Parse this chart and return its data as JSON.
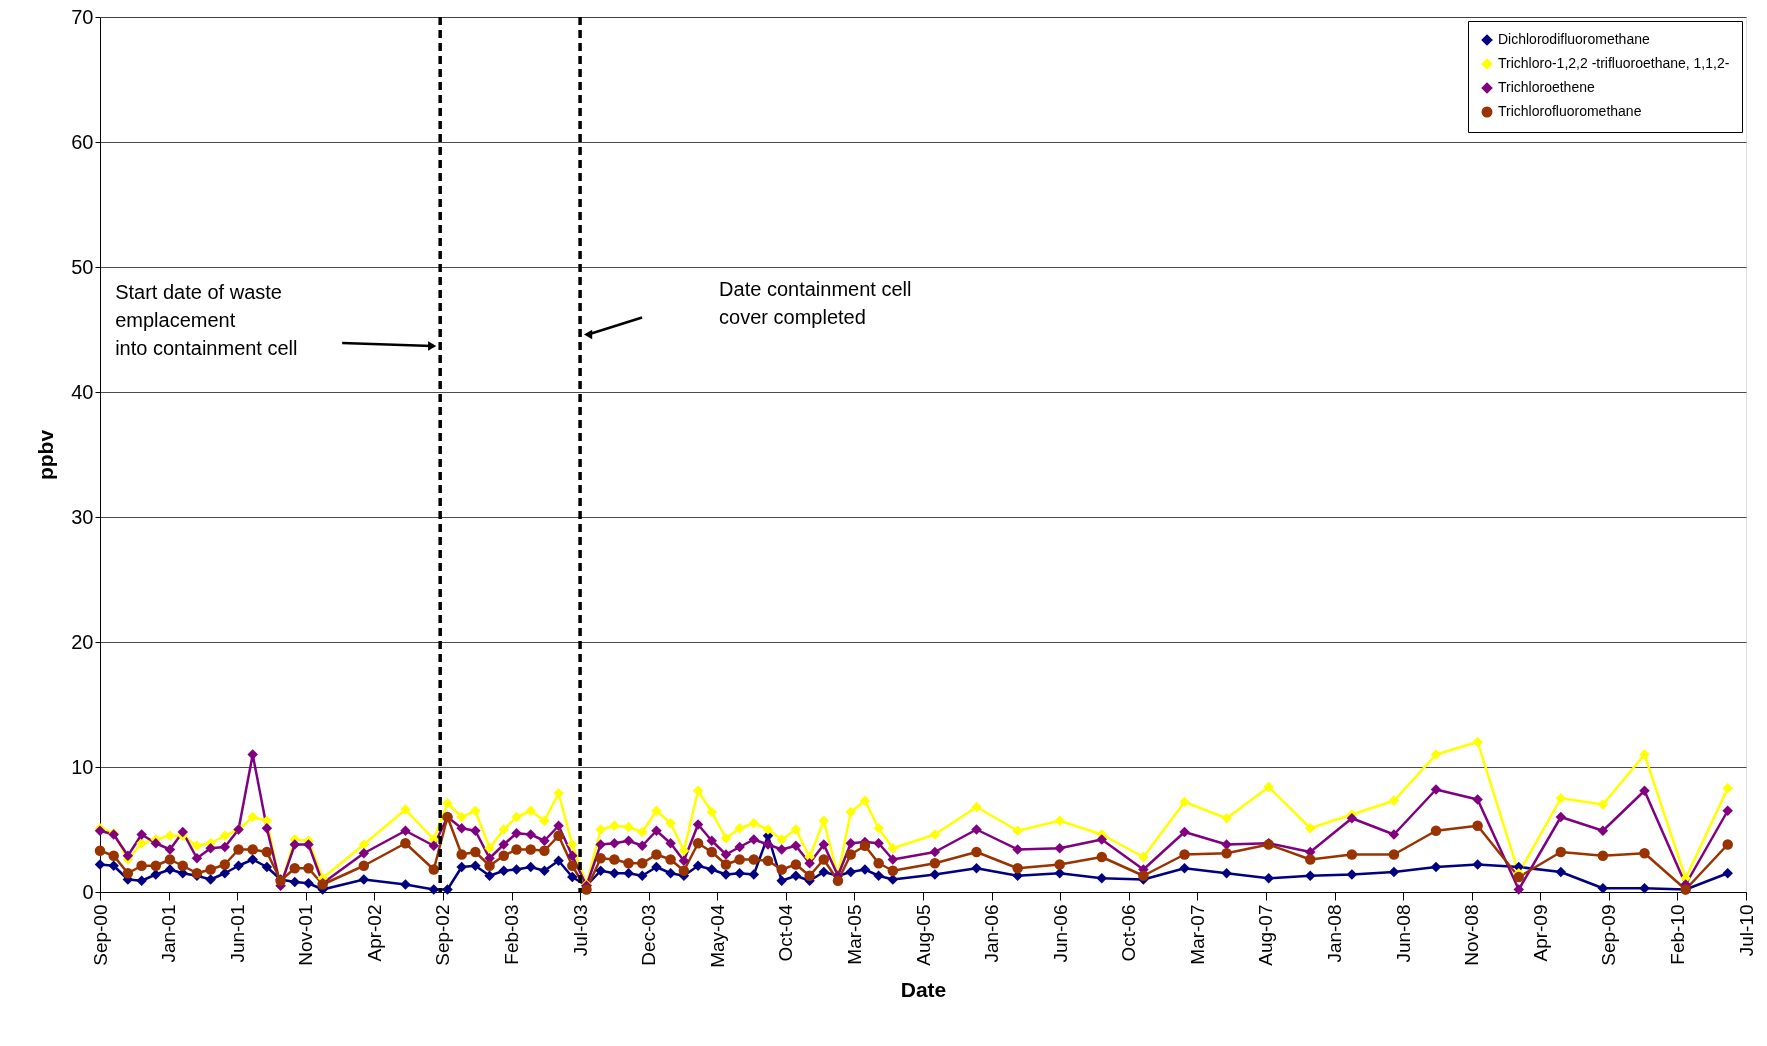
{
  "chart_data": {
    "type": "line",
    "xlabel": "Date",
    "ylabel": "ppbv",
    "x": [
      "2000-09",
      "2000-10",
      "2000-11",
      "2000-12",
      "2001-01",
      "2001-02",
      "2001-03",
      "2001-04",
      "2001-05",
      "2001-06",
      "2001-07",
      "2001-08",
      "2001-09",
      "2001-10",
      "2001-11",
      "2001-12",
      "2002-01",
      "2002-04",
      "2002-07",
      "2002-09",
      "2002-10",
      "2002-11",
      "2002-12",
      "2003-01",
      "2003-02",
      "2003-03",
      "2003-04",
      "2003-05",
      "2003-06",
      "2003-07",
      "2003-08",
      "2003-09",
      "2003-10",
      "2003-11",
      "2003-12",
      "2004-01",
      "2004-02",
      "2004-03",
      "2004-04",
      "2004-05",
      "2004-06",
      "2004-07",
      "2004-08",
      "2004-09",
      "2004-10",
      "2004-11",
      "2004-12",
      "2005-01",
      "2005-02",
      "2005-03",
      "2005-04",
      "2005-05",
      "2005-06",
      "2005-09",
      "2005-12",
      "2006-03",
      "2006-06",
      "2006-09",
      "2006-12",
      "2007-03",
      "2007-06",
      "2007-09",
      "2007-12",
      "2008-03",
      "2008-06",
      "2008-09",
      "2008-12",
      "2009-03",
      "2009-06",
      "2009-09",
      "2009-12",
      "2010-03",
      "2010-06"
    ],
    "series": [
      {
        "name": "Dichlorodifluoromethane",
        "color": "#000080",
        "marker": "diamond",
        "values": [
          2.2,
          2.1,
          1.0,
          0.9,
          1.4,
          1.8,
          1.5,
          1.3,
          1.0,
          1.5,
          2.1,
          2.6,
          2.0,
          1.0,
          0.8,
          0.7,
          0.2,
          1.0,
          0.6,
          0.2,
          0.2,
          2.0,
          2.1,
          1.3,
          1.7,
          1.8,
          2.0,
          1.7,
          2.5,
          1.2,
          0.5,
          1.7,
          1.5,
          1.5,
          1.3,
          2.0,
          1.5,
          1.3,
          2.1,
          1.8,
          1.4,
          1.5,
          1.4,
          4.5,
          0.9,
          1.3,
          0.9,
          1.6,
          1.3,
          1.6,
          1.8,
          1.3,
          1.0,
          1.4,
          1.9,
          1.3,
          1.5,
          1.1,
          1.0,
          1.9,
          1.5,
          1.1,
          1.3,
          1.4,
          1.6,
          2.0,
          2.2,
          2.0,
          1.6,
          0.3,
          0.3,
          0.2,
          1.5
        ]
      },
      {
        "name": "Trichloro-1,2,2 -trifluoroethane, 1,1,2-",
        "color": "#ffff00",
        "marker": "diamond",
        "values": [
          5.1,
          4.7,
          2.6,
          3.9,
          4.2,
          4.5,
          4.5,
          3.7,
          3.9,
          4.5,
          5.0,
          6.0,
          5.7,
          0.5,
          4.2,
          4.1,
          1.1,
          3.8,
          6.6,
          4.2,
          7.1,
          6.0,
          6.5,
          3.5,
          5.0,
          6.0,
          6.5,
          5.7,
          7.9,
          3.8,
          0.6,
          5.0,
          5.3,
          5.2,
          4.8,
          6.5,
          5.5,
          3.3,
          8.1,
          6.4,
          4.3,
          5.1,
          5.5,
          5.0,
          4.2,
          5.0,
          2.8,
          5.7,
          1.3,
          6.4,
          7.3,
          5.1,
          3.5,
          4.6,
          6.8,
          4.9,
          5.7,
          4.6,
          2.8,
          7.2,
          5.9,
          8.4,
          5.1,
          6.2,
          7.3,
          11.0,
          12.0,
          1.5,
          7.5,
          7.0,
          11.0,
          1.1,
          8.3
        ]
      },
      {
        "name": "Trichloroethene",
        "color": "#800080",
        "marker": "diamond",
        "values": [
          4.9,
          4.6,
          2.9,
          4.6,
          3.9,
          3.4,
          4.8,
          2.7,
          3.5,
          3.6,
          5.0,
          11.0,
          5.1,
          0.5,
          3.8,
          3.8,
          0.7,
          3.1,
          4.9,
          3.7,
          6.0,
          5.1,
          4.9,
          2.7,
          3.8,
          4.7,
          4.6,
          4.1,
          5.3,
          2.9,
          0.5,
          3.8,
          3.9,
          4.1,
          3.7,
          4.9,
          3.9,
          2.5,
          5.4,
          4.1,
          3.0,
          3.6,
          4.2,
          3.8,
          3.4,
          3.7,
          2.3,
          3.8,
          1.3,
          3.9,
          4.0,
          3.9,
          2.6,
          3.2,
          5.0,
          3.4,
          3.5,
          4.2,
          1.8,
          4.8,
          3.8,
          3.9,
          3.2,
          5.9,
          4.6,
          8.2,
          7.4,
          0.2,
          6.0,
          4.9,
          8.1,
          0.6,
          6.5
        ]
      },
      {
        "name": "Trichlorofluoromethane",
        "color": "#993300",
        "marker": "circle",
        "values": [
          3.3,
          2.9,
          1.5,
          2.1,
          2.1,
          2.6,
          2.1,
          1.5,
          1.8,
          2.2,
          3.4,
          3.4,
          3.2,
          0.9,
          1.9,
          1.9,
          0.6,
          2.1,
          3.9,
          1.8,
          6.0,
          3.0,
          3.2,
          2.1,
          2.9,
          3.4,
          3.4,
          3.3,
          4.5,
          2.1,
          0.2,
          2.7,
          2.6,
          2.3,
          2.3,
          3.0,
          2.6,
          1.7,
          3.9,
          3.2,
          2.2,
          2.6,
          2.6,
          2.5,
          1.8,
          2.2,
          1.3,
          2.6,
          0.9,
          3.0,
          3.7,
          2.3,
          1.7,
          2.3,
          3.2,
          1.9,
          2.2,
          2.8,
          1.3,
          3.0,
          3.1,
          3.8,
          2.6,
          3.0,
          3.0,
          4.9,
          5.3,
          1.2,
          3.2,
          2.9,
          3.1,
          0.2,
          3.8
        ]
      }
    ],
    "xlim": [
      "2000-09-01",
      "2010-07-11"
    ],
    "xticks": [
      {
        "value": "2000-09-01",
        "label": "Sep-00"
      },
      {
        "value": "2001-01-29",
        "label": "Jan-01"
      },
      {
        "value": "2001-06-28",
        "label": "Jun-01"
      },
      {
        "value": "2001-11-25",
        "label": "Nov-01"
      },
      {
        "value": "2002-04-24",
        "label": "Apr-02"
      },
      {
        "value": "2002-09-21",
        "label": "Sep-02"
      },
      {
        "value": "2003-02-18",
        "label": "Feb-03"
      },
      {
        "value": "2003-07-18",
        "label": "Jul-03"
      },
      {
        "value": "2003-12-15",
        "label": "Dec-03"
      },
      {
        "value": "2004-05-13",
        "label": "May-04"
      },
      {
        "value": "2004-10-10",
        "label": "Oct-04"
      },
      {
        "value": "2005-03-09",
        "label": "Mar-05"
      },
      {
        "value": "2005-08-06",
        "label": "Aug-05"
      },
      {
        "value": "2006-01-03",
        "label": "Jan-06"
      },
      {
        "value": "2006-06-02",
        "label": "Jun-06"
      },
      {
        "value": "2006-10-30",
        "label": "Oct-06"
      },
      {
        "value": "2007-03-29",
        "label": "Mar-07"
      },
      {
        "value": "2007-08-26",
        "label": "Aug-07"
      },
      {
        "value": "2008-01-23",
        "label": "Jan-08"
      },
      {
        "value": "2008-06-21",
        "label": "Jun-08"
      },
      {
        "value": "2008-11-18",
        "label": "Nov-08"
      },
      {
        "value": "2009-04-17",
        "label": "Apr-09"
      },
      {
        "value": "2009-09-14",
        "label": "Sep-09"
      },
      {
        "value": "2010-02-11",
        "label": "Feb-10"
      },
      {
        "value": "2010-07-11",
        "label": "Jul-10"
      }
    ],
    "ylim": [
      0,
      70
    ],
    "yticks": [
      0,
      10,
      20,
      30,
      40,
      50,
      60,
      70
    ],
    "ref_lines": [
      {
        "axis": "x",
        "value": "2002-09-15",
        "color": "#000000",
        "line_style": "dashed"
      },
      {
        "axis": "x",
        "value": "2003-07-18",
        "color": "#000000",
        "line_style": "dashed"
      }
    ],
    "annotations": [
      "Start date of waste\nemplacement\ninto containment cell",
      "Date containment cell\ncover completed"
    ],
    "grid": "y",
    "legend": "top right",
    "line_style": "solid"
  }
}
